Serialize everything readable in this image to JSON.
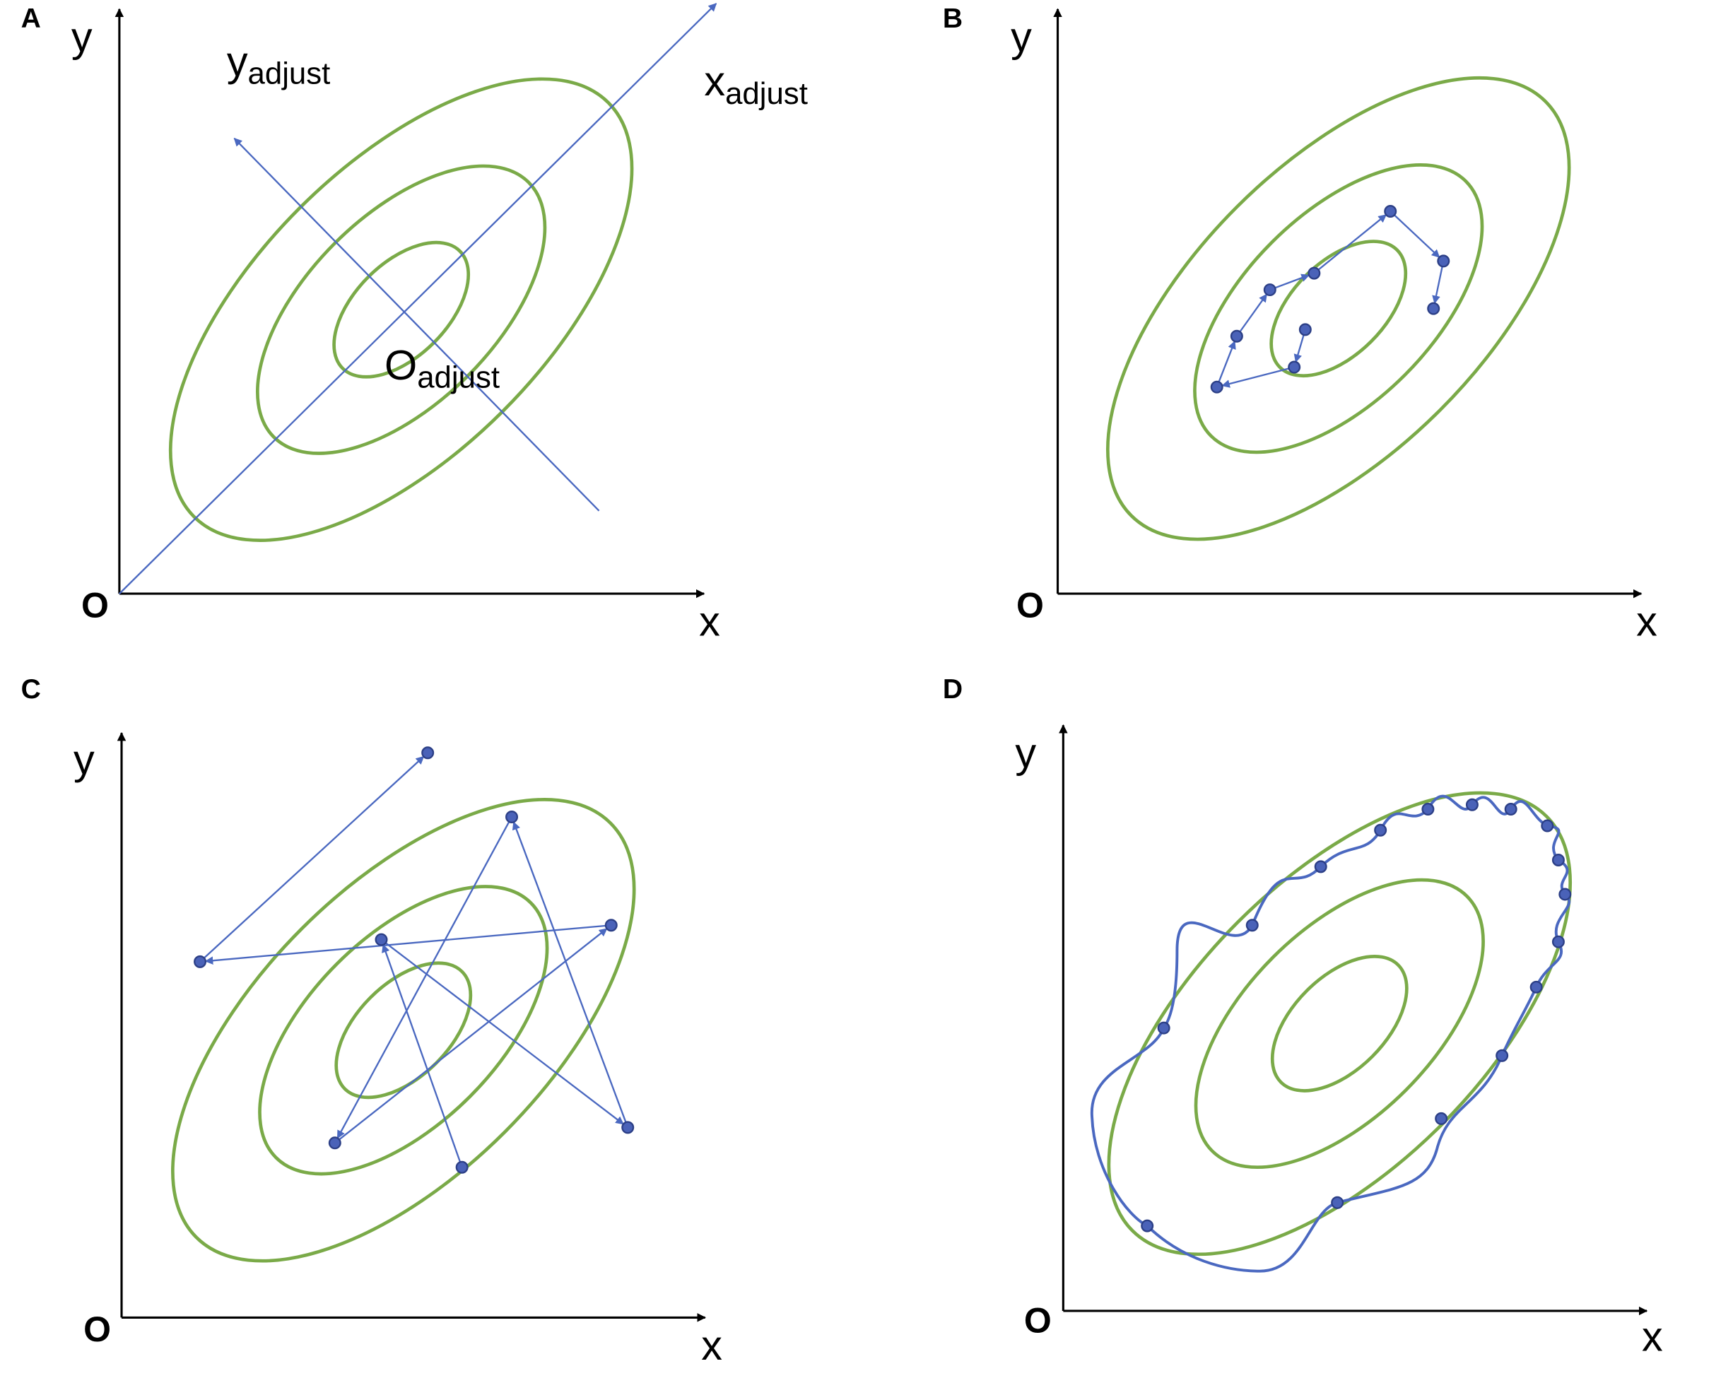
{
  "panels": [
    {
      "label": "A",
      "y_axis": "y",
      "x_axis": "x",
      "origin": "O",
      "annotations": [
        {
          "base": "y",
          "sub": "adjust"
        },
        {
          "base": "x",
          "sub": "adjust"
        },
        {
          "base": "O",
          "sub": "adjust"
        }
      ]
    },
    {
      "label": "B",
      "y_axis": "y",
      "x_axis": "x",
      "origin": "O"
    },
    {
      "label": "C",
      "y_axis": "y",
      "x_axis": "x",
      "origin": "O"
    },
    {
      "label": "D",
      "y_axis": "y",
      "x_axis": "x",
      "origin": "O"
    }
  ]
}
